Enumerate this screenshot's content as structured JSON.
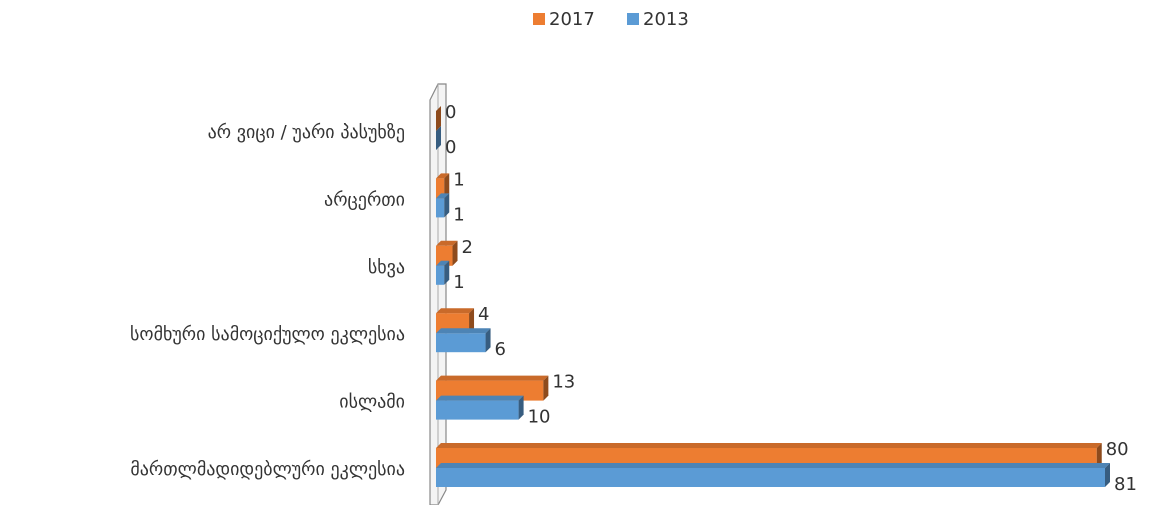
{
  "chart_data": {
    "type": "bar",
    "orientation": "horizontal",
    "categories": [
      "არ ვიცი / უარი პასუხზე",
      "არცერთი",
      "სხვა",
      "სომხური სამოციქულო ეკლესია",
      "ისლამი",
      "მართლმადიდებლური ეკლესია"
    ],
    "series": [
      {
        "name": "2017",
        "color": "#ed7d31",
        "values": [
          0,
          1,
          2,
          4,
          13,
          80
        ]
      },
      {
        "name": "2013",
        "color": "#5b9bd5",
        "values": [
          0,
          1,
          1,
          6,
          10,
          81
        ]
      }
    ],
    "legend": "top"
  }
}
